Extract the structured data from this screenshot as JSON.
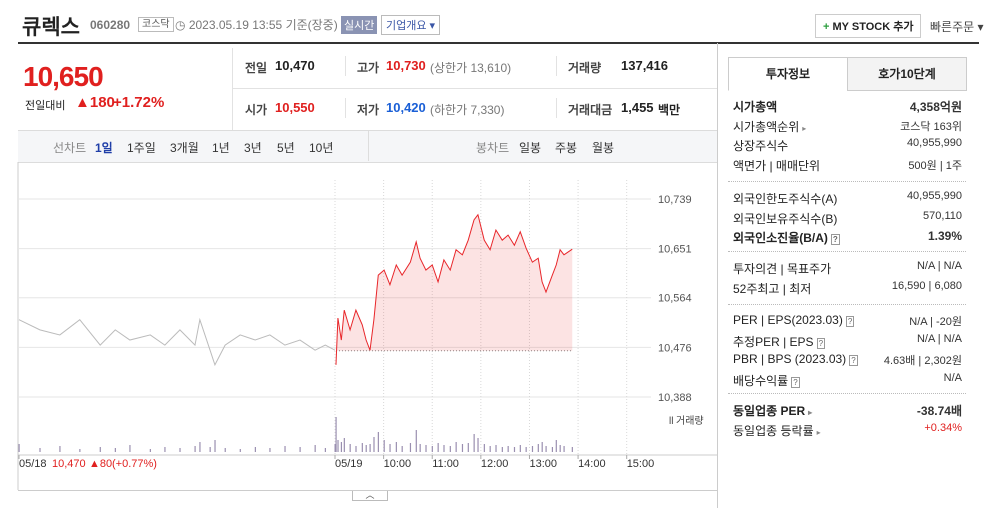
{
  "header": {
    "name": "큐렉스",
    "code": "060280",
    "market": "코스닥",
    "timestamp": "2023.05.19 13:55 기준(장중)",
    "realtime": "실시간",
    "company_menu": "기업개요",
    "my_stock_button": "MY STOCK 추가",
    "quick_order": "빠른주문"
  },
  "price": {
    "current": "10,650",
    "change_label": "전일대비",
    "change": "180",
    "change_rate": "+1.72%"
  },
  "quote": {
    "rows": [
      [
        {
          "label": "전일",
          "value": "10,470",
          "color": "#222222"
        },
        {
          "label": "고가",
          "value": "10,730",
          "note": "(상한가 13,610)",
          "color": "#e0201f"
        },
        {
          "label": "거래량",
          "value": "137,416",
          "color": "#222222"
        }
      ],
      [
        {
          "label": "시가",
          "value": "10,550",
          "color": "#e0201f"
        },
        {
          "label": "저가",
          "value": "10,420",
          "note": "(하한가 7,330)",
          "color": "#1a5fd6"
        },
        {
          "label": "거래대금",
          "value": "1,455",
          "unit": "백만",
          "color": "#222222"
        }
      ]
    ]
  },
  "toolbar": {
    "line_chart": "선차트",
    "periods": [
      "1일",
      "1주일",
      "3개월",
      "1년",
      "3년",
      "5년",
      "10년"
    ],
    "active_period": 0,
    "candle_chart": "봉차트",
    "candles": [
      "일봉",
      "주봉",
      "월봉"
    ]
  },
  "chart_data": {
    "type": "line",
    "xlim": [
      0,
      13
    ],
    "xticks": [
      {
        "value": 0,
        "label": "05/18"
      },
      {
        "value": 6.5,
        "label": "05/19"
      },
      {
        "value": 7.5,
        "label": "10:00"
      },
      {
        "value": 8.5,
        "label": "11:00"
      },
      {
        "value": 9.5,
        "label": "12:00"
      },
      {
        "value": 10.5,
        "label": "13:00"
      },
      {
        "value": 11.5,
        "label": "14:00"
      },
      {
        "value": 12.5,
        "label": "15:00"
      }
    ],
    "ylim": [
      10388,
      10739
    ],
    "yticks": [
      {
        "value": 10739,
        "label": "10,739"
      },
      {
        "value": 10651,
        "label": "10,651"
      },
      {
        "value": 10564,
        "label": "10,564"
      },
      {
        "value": 10476,
        "label": "10,476"
      },
      {
        "value": 10388,
        "label": "10,388"
      }
    ],
    "baseline": 10470,
    "grid": true,
    "volume_label": "거래량",
    "volume_ylim": [
      0,
      40
    ],
    "volume_color": "#9a8fb0",
    "series": [
      {
        "color": "#bbbbbb",
        "fill": false,
        "x": [
          0,
          0.43,
          0.84,
          1.25,
          1.67,
          1.98,
          2.28,
          2.7,
          3.0,
          3.31,
          3.62,
          3.72,
          3.93,
          4.03,
          4.24,
          4.55,
          4.86,
          5.16,
          5.47,
          5.78,
          6.09,
          6.3,
          6.5
        ],
        "values": [
          10525,
          10507,
          10498,
          10525,
          10480,
          10507,
          10489,
          10498,
          10480,
          10507,
          10480,
          10525,
          10471,
          10445,
          10480,
          10498,
          10489,
          10498,
          10480,
          10489,
          10471,
          10480,
          10471
        ],
        "volume": [
          8,
          4,
          6,
          3,
          5,
          4,
          7,
          3,
          5,
          4,
          6,
          10,
          5,
          12,
          4,
          3,
          5,
          4,
          6,
          5,
          7,
          4,
          8
        ]
      },
      {
        "color": "#e8262a",
        "fill": true,
        "x": [
          6.52,
          6.56,
          6.63,
          6.69,
          6.81,
          6.93,
          7.06,
          7.14,
          7.22,
          7.3,
          7.39,
          7.51,
          7.63,
          7.76,
          7.88,
          8.05,
          8.17,
          8.25,
          8.37,
          8.5,
          8.62,
          8.74,
          8.87,
          8.99,
          9.12,
          9.24,
          9.36,
          9.44,
          9.57,
          9.69,
          9.81,
          9.94,
          10.06,
          10.19,
          10.31,
          10.43,
          10.56,
          10.68,
          10.76,
          10.84,
          10.97,
          11.05,
          11.13,
          11.21,
          11.38
        ],
        "values": [
          10445,
          10528,
          10489,
          10542,
          10507,
          10542,
          10516,
          10489,
          10471,
          10525,
          10604,
          10613,
          10587,
          10622,
          10604,
          10627,
          10663,
          10634,
          10613,
          10622,
          10592,
          10631,
          10613,
          10649,
          10640,
          10666,
          10702,
          10711,
          10666,
          10649,
          10684,
          10666,
          10675,
          10657,
          10681,
          10652,
          10627,
          10634,
          10592,
          10574,
          10604,
          10622,
          10649,
          10640,
          10650
        ],
        "volume": [
          35,
          12,
          10,
          14,
          8,
          6,
          9,
          7,
          8,
          15,
          20,
          12,
          8,
          10,
          6,
          9,
          22,
          8,
          7,
          6,
          9,
          7,
          6,
          10,
          8,
          9,
          18,
          14,
          8,
          6,
          7,
          5,
          6,
          5,
          7,
          5,
          6,
          8,
          10,
          6,
          5,
          12,
          7,
          6,
          5
        ]
      }
    ],
    "footer": {
      "price": "10,470",
      "change": "80",
      "change_rate": "(+0.77%)"
    }
  },
  "tabs": {
    "items": [
      "투자정보",
      "호가10단계"
    ],
    "active": 0
  },
  "invest_info": {
    "sections": [
      {
        "rows": [
          {
            "label": "시가총액",
            "value": "4,358억원",
            "bold": true
          },
          {
            "label": "시가총액순위",
            "value": "코스닥 163위",
            "arrow": true
          },
          {
            "label": "상장주식수",
            "value": "40,955,990"
          },
          {
            "label": "액면가 | 매매단위",
            "value": "500원 | 1주"
          }
        ]
      },
      {
        "rows": [
          {
            "label": "외국인한도주식수(A)",
            "value": "40,955,990"
          },
          {
            "label": "외국인보유주식수(B)",
            "value": "570,110"
          },
          {
            "label": "외국인소진율(B/A)",
            "value": "1.39%",
            "bold": true,
            "help": true
          }
        ]
      },
      {
        "rows": [
          {
            "label": "투자의견 | 목표주가",
            "value": "N/A | N/A"
          },
          {
            "label": "52주최고 | 최저",
            "value": "16,590 | 6,080"
          }
        ]
      },
      {
        "rows": [
          {
            "label": "PER | EPS(2023.03)",
            "value": "N/A | -20원",
            "help": true
          },
          {
            "label": "추정PER | EPS",
            "value": "N/A | N/A",
            "help": true
          },
          {
            "label": "PBR | BPS (2023.03)",
            "value": "4.63배 | 2,302원",
            "help": true
          },
          {
            "label": "배당수익률",
            "value": "N/A",
            "help": true
          }
        ]
      },
      {
        "rows": [
          {
            "label": "동일업종 PER",
            "value": "-38.74배",
            "bold": true,
            "arrow": true
          },
          {
            "label": "동일업종 등락률",
            "value": "+0.34%",
            "arrow": true,
            "color": "#e0201f"
          }
        ]
      }
    ]
  }
}
